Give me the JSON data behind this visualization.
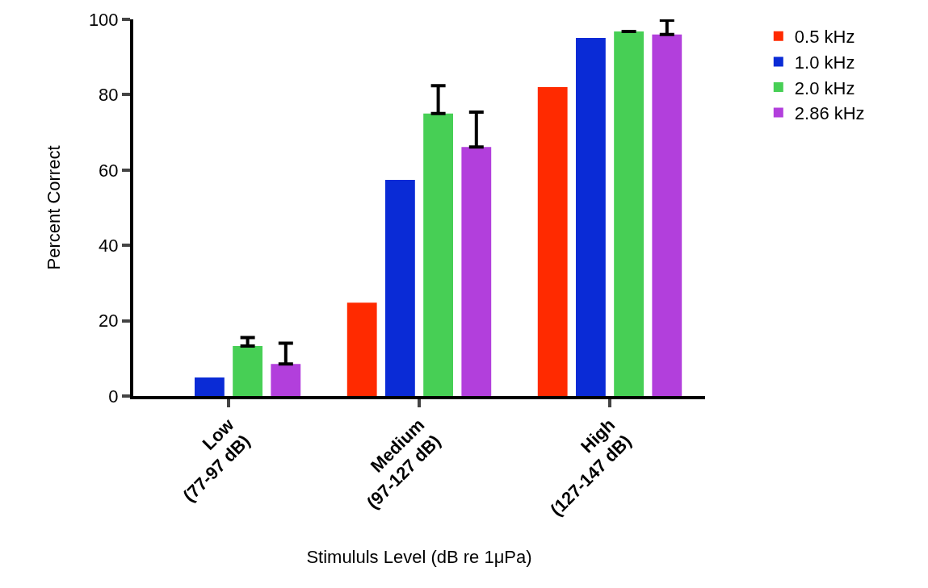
{
  "chart_data": {
    "type": "bar",
    "xlabel": "Stimululs Level (dB re 1μPa)",
    "ylabel": "Percent Correct",
    "categories": [
      "Low\n(77-97 dB)",
      "Medium\n(97-127 dB)",
      "High\n(127-147 dB)"
    ],
    "series": [
      {
        "name": "0.5 kHz",
        "color": "#ff2a00",
        "values": [
          0,
          24.8,
          82
        ]
      },
      {
        "name": "1.0 kHz",
        "color": "#0a2bd6",
        "values": [
          4.9,
          57.4,
          95.1
        ]
      },
      {
        "name": "2.0 kHz",
        "color": "#47cf55",
        "values": [
          13.3,
          75,
          96.8
        ],
        "errors": [
          [
            13.3,
            15.5
          ],
          [
            75,
            82.4
          ],
          null
        ]
      },
      {
        "name": "2.86 kHz",
        "color": "#b23fdc",
        "values": [
          8.5,
          66.1,
          96
        ],
        "errors": [
          [
            8.5,
            14
          ],
          [
            66.1,
            75.4
          ],
          [
            96,
            99.8
          ]
        ]
      }
    ],
    "ylim": [
      0,
      100
    ],
    "yticks": [
      0,
      20,
      40,
      60,
      80,
      100
    ],
    "legend": "top right"
  }
}
